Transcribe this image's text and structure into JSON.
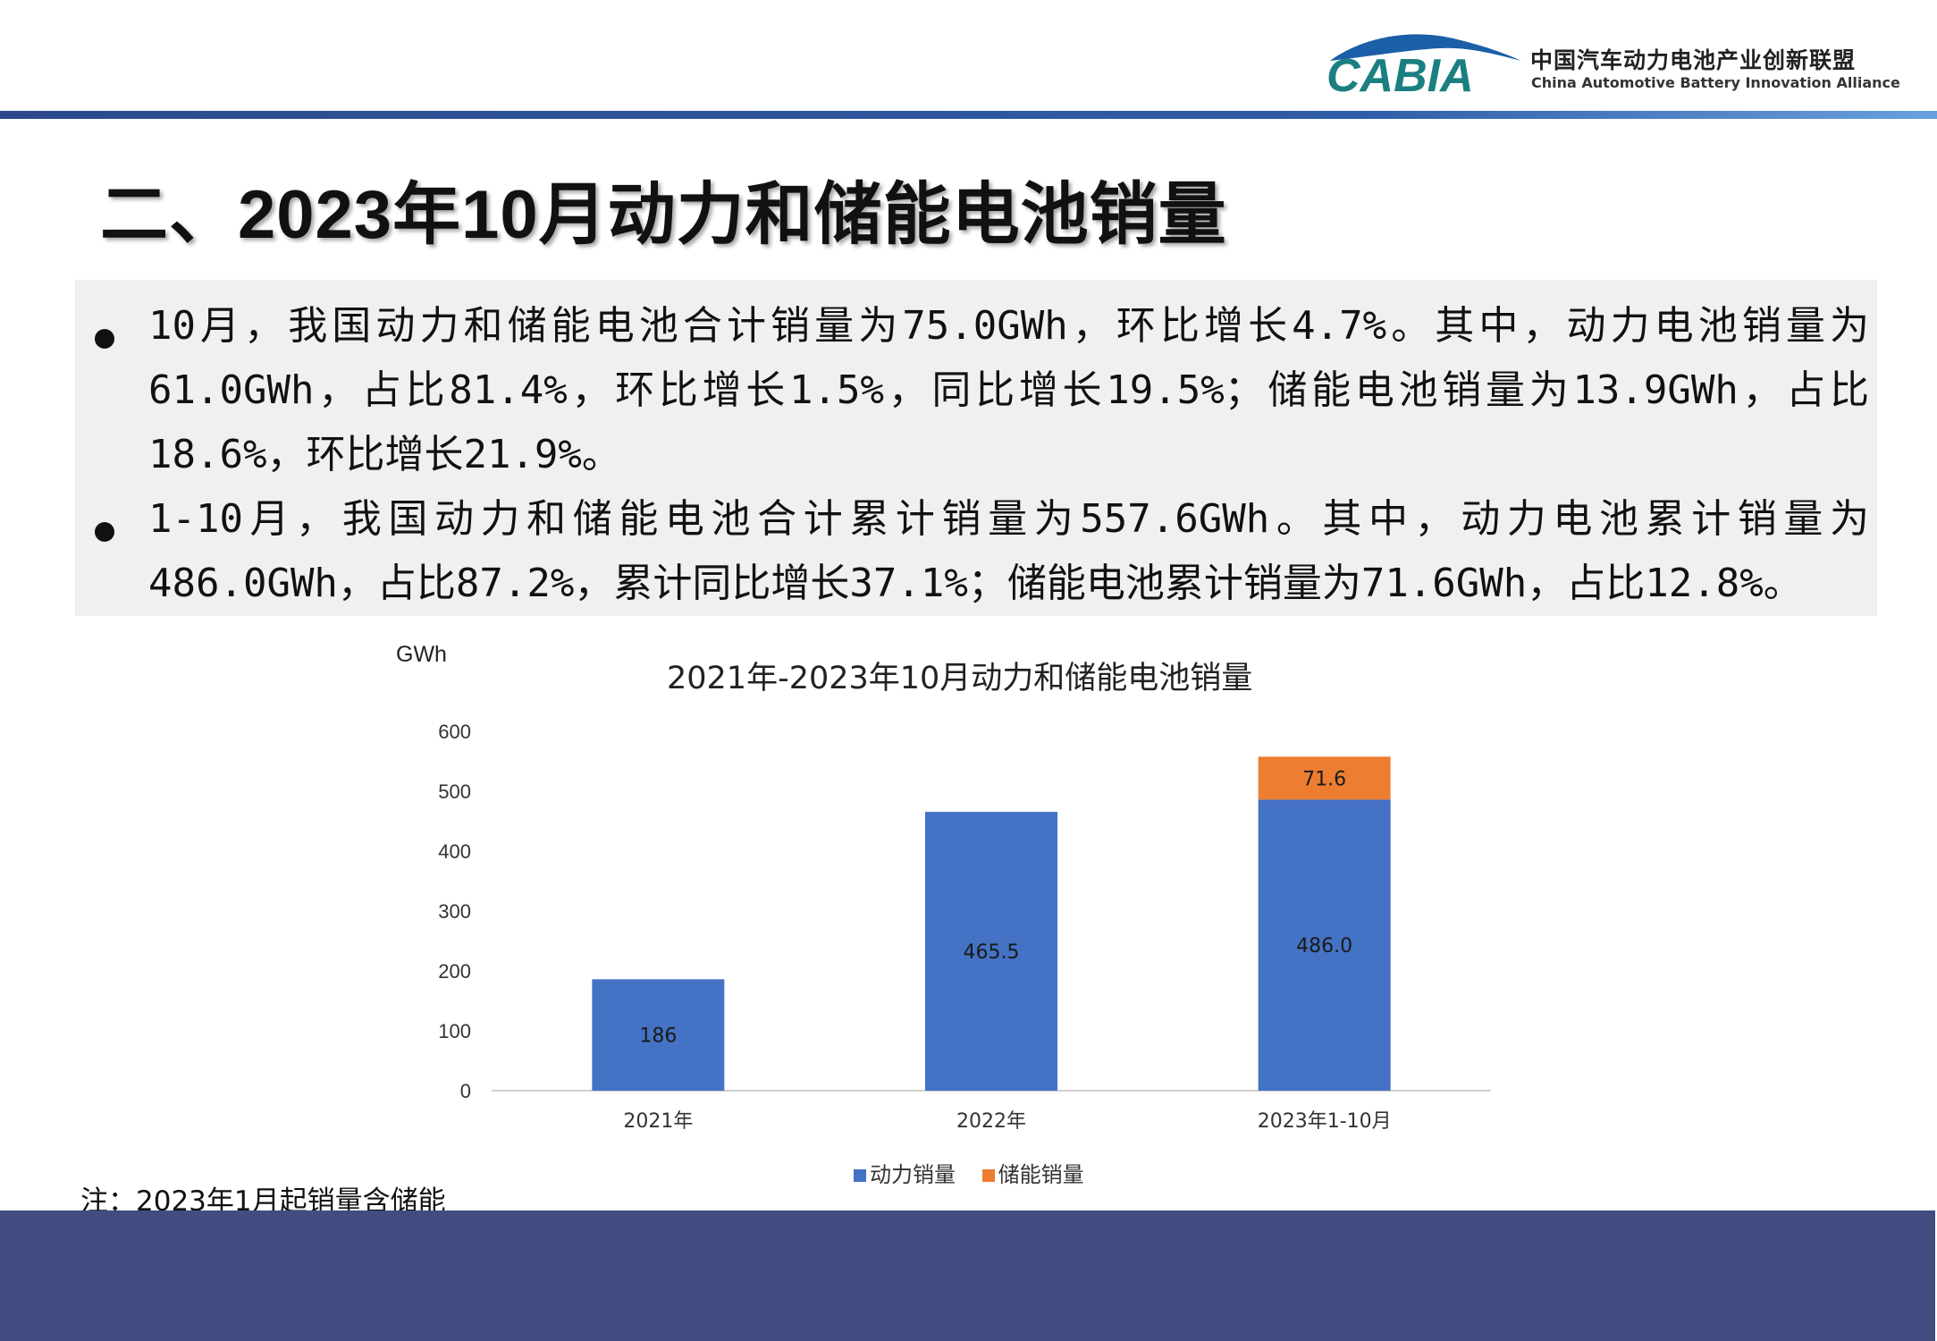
{
  "header": {
    "logo_text": "CABIA",
    "org_name_cn": "中国汽车动力电池产业创新联盟",
    "org_name_en": "China Automotive Battery Innovation Alliance"
  },
  "title": "二、2023年10月动力和储能电池销量",
  "bullets": [
    "10月，我国动力和储能电池合计销量为75.0GWh，环比增长4.7%。其中，动力电池销量为61.0GWh，占比81.4%，环比增长1.5%，同比增长19.5%；储能电池销量为13.9GWh，占比18.6%，环比增长21.9%。",
    "1-10月，我国动力和储能电池合计累计销量为557.6GWh。其中，动力电池累计销量为486.0GWh，占比87.2%，累计同比增长37.1%；储能电池累计销量为71.6GWh，占比12.8%。"
  ],
  "chart_data": {
    "type": "bar",
    "stacked": true,
    "title": "2021年-2023年10月动力和储能电池销量",
    "ylabel": "GWh",
    "xlabel": "",
    "ylim": [
      0,
      600
    ],
    "yticks": [
      0,
      100,
      200,
      300,
      400,
      500,
      600
    ],
    "categories": [
      "2021年",
      "2022年",
      "2023年1-10月"
    ],
    "series": [
      {
        "name": "动力销量",
        "color": "#4472c4",
        "values": [
          186,
          465.5,
          486.0
        ],
        "labels": [
          "186",
          "465.5",
          "486.0"
        ]
      },
      {
        "name": "储能销量",
        "color": "#ed7d31",
        "values": [
          0,
          0,
          71.6
        ],
        "labels": [
          "",
          "",
          "71.6"
        ]
      }
    ],
    "legend_position": "bottom",
    "grid": false
  },
  "note": "注：2023年1月起销量含储能",
  "colors": {
    "header_rule": "#2c4a8a",
    "footer_band": "#424c81",
    "summary_bg": "#f0f0f0"
  }
}
